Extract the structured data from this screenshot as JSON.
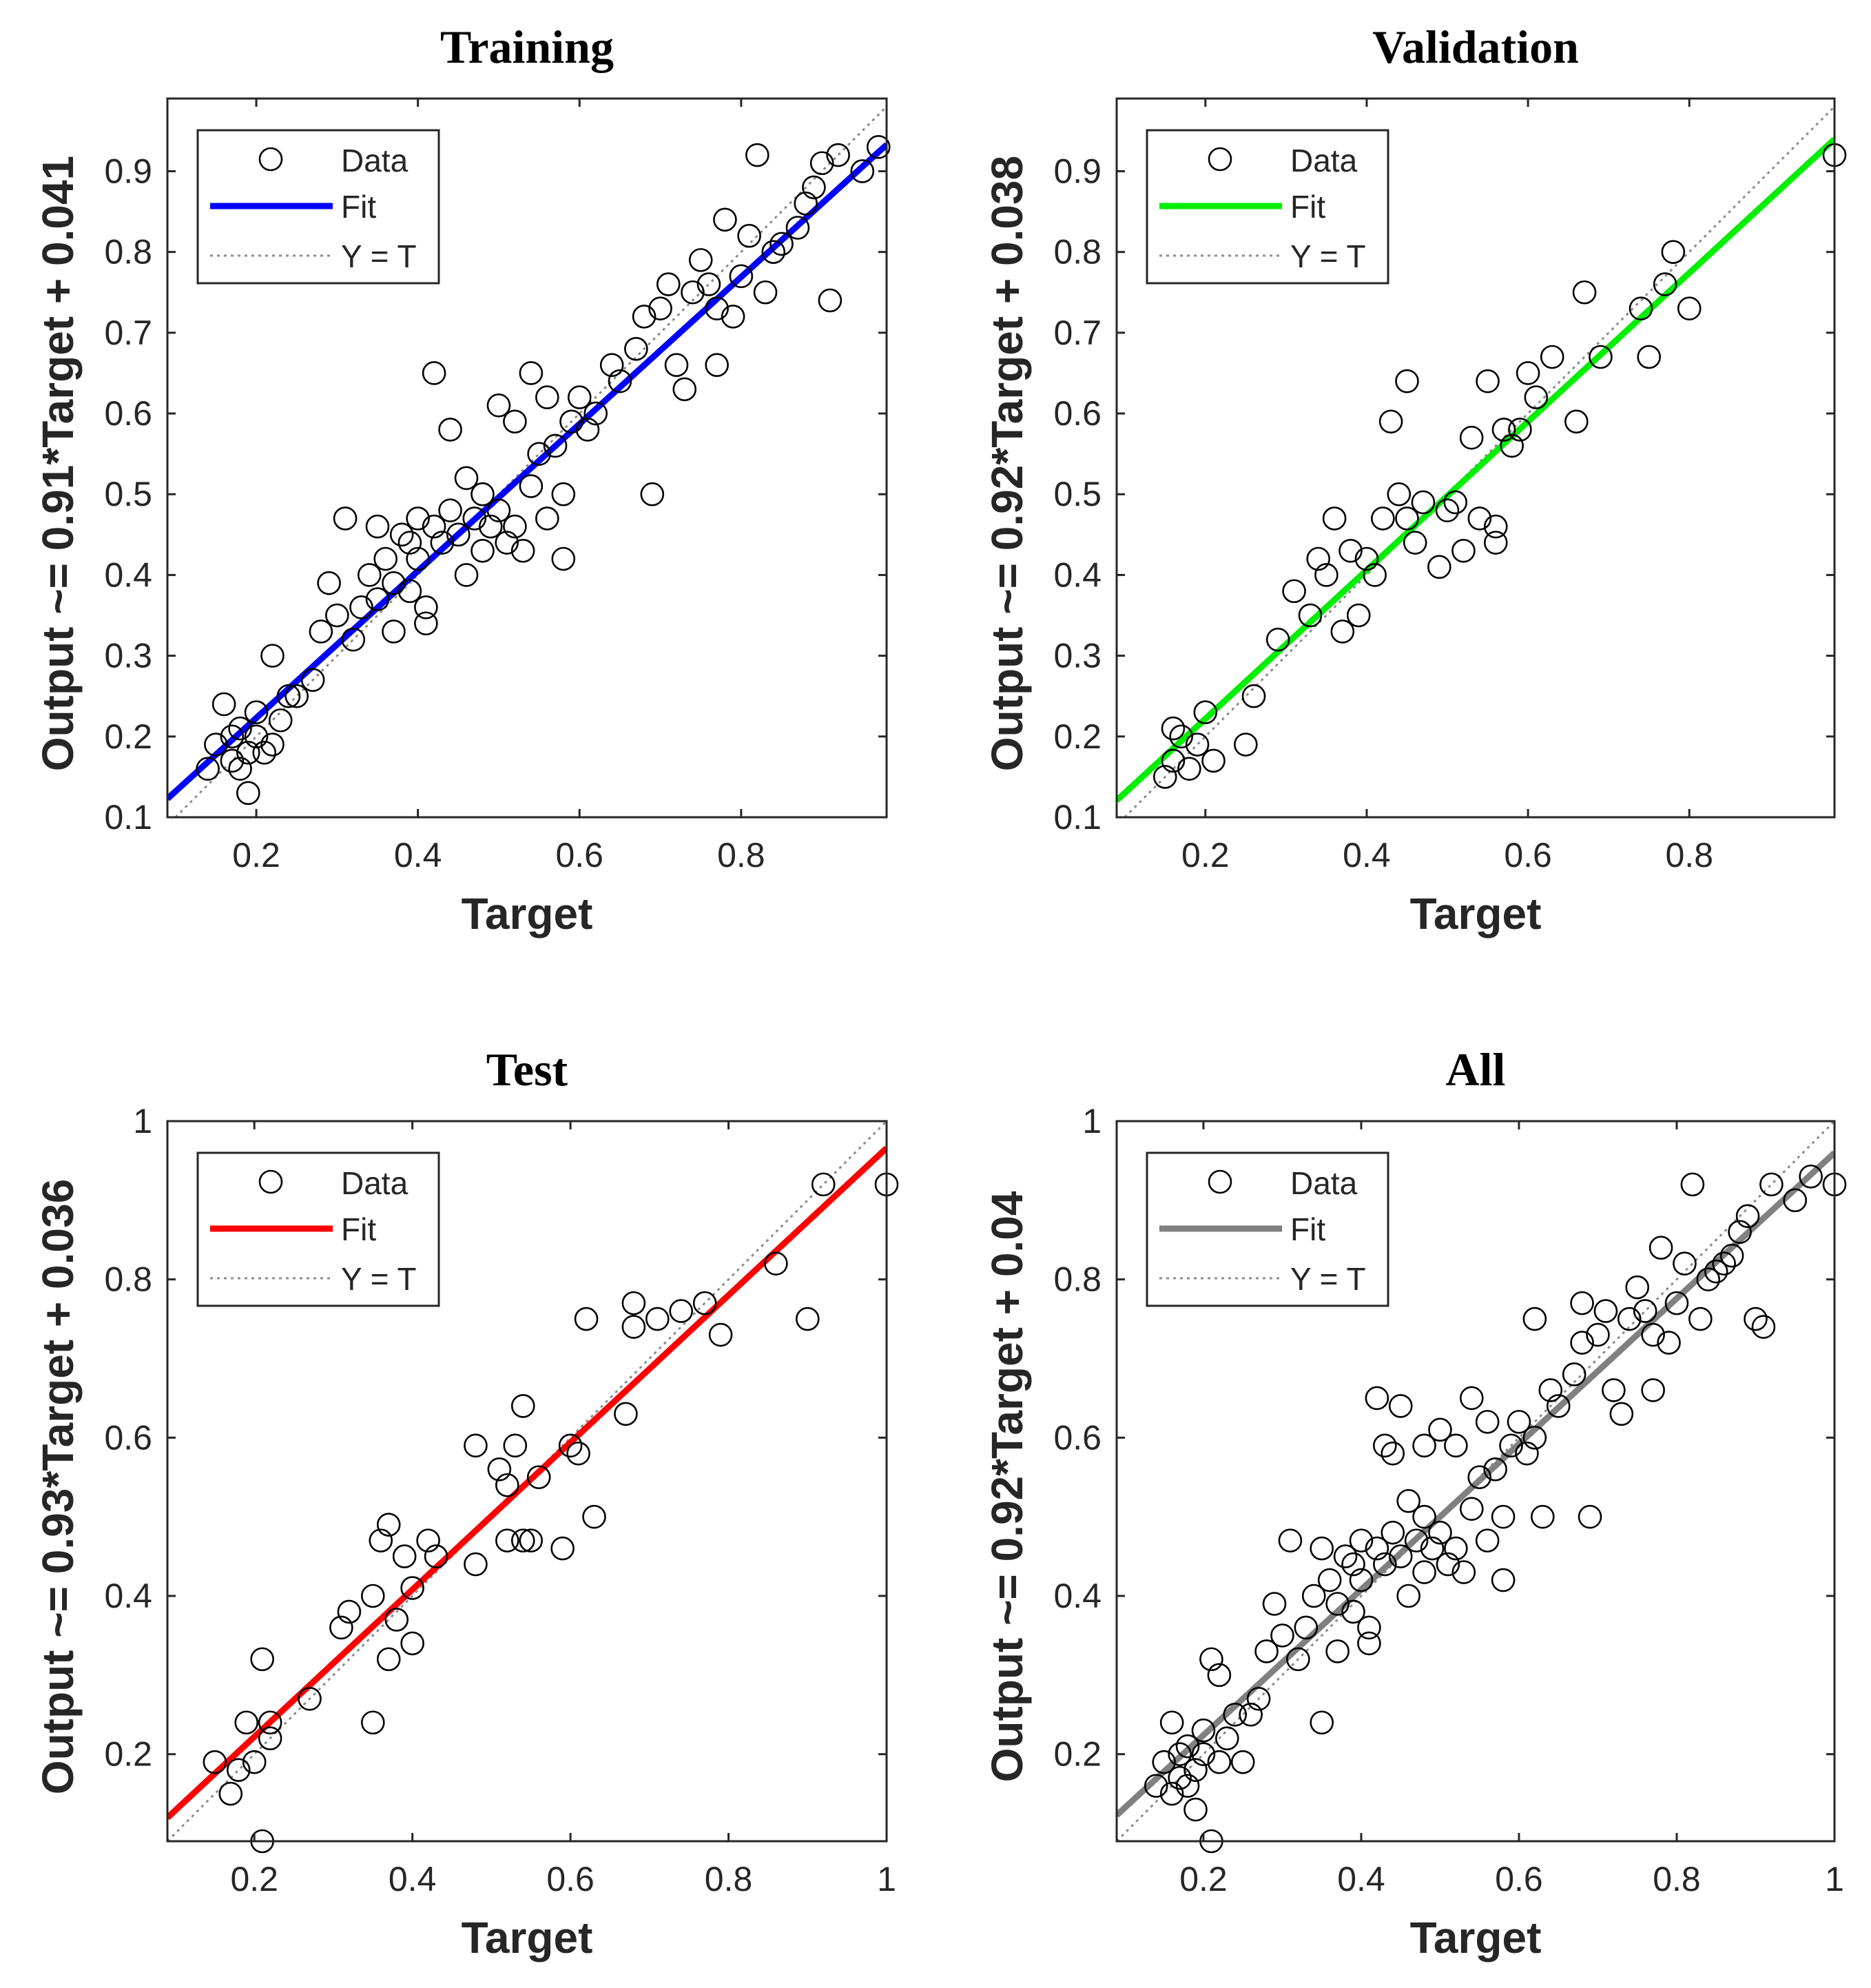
{
  "colors": {
    "axis": "#262626",
    "marker": "#000000",
    "identity": "#8c8c8c"
  },
  "chart_data": [
    {
      "type": "scatter",
      "title": "Training",
      "xlabel": "Target",
      "ylabel": "Output ~= 0.91*Target + 0.041",
      "xlim": [
        0.09,
        0.98
      ],
      "ylim": [
        0.1,
        0.99
      ],
      "xticks": [
        "0.2",
        "0.4",
        "0.6",
        "0.8"
      ],
      "xtick_values": [
        0.2,
        0.4,
        0.6,
        0.8
      ],
      "yticks": [
        "0.1",
        "0.2",
        "0.3",
        "0.4",
        "0.5",
        "0.6",
        "0.7",
        "0.8",
        "0.9"
      ],
      "ytick_values": [
        0.1,
        0.2,
        0.3,
        0.4,
        0.5,
        0.6,
        0.7,
        0.8,
        0.9
      ],
      "fit": {
        "slope": 0.91,
        "intercept": 0.041,
        "color": "#0000ff"
      },
      "legend": {
        "data": "Data",
        "fit": "Fit",
        "identity": "Y = T",
        "position": "top-left"
      },
      "points": [
        [
          0.14,
          0.16
        ],
        [
          0.15,
          0.19
        ],
        [
          0.16,
          0.24
        ],
        [
          0.17,
          0.17
        ],
        [
          0.17,
          0.2
        ],
        [
          0.18,
          0.16
        ],
        [
          0.18,
          0.21
        ],
        [
          0.19,
          0.13
        ],
        [
          0.19,
          0.18
        ],
        [
          0.2,
          0.2
        ],
        [
          0.2,
          0.23
        ],
        [
          0.21,
          0.18
        ],
        [
          0.22,
          0.19
        ],
        [
          0.22,
          0.3
        ],
        [
          0.23,
          0.22
        ],
        [
          0.24,
          0.25
        ],
        [
          0.25,
          0.25
        ],
        [
          0.27,
          0.27
        ],
        [
          0.28,
          0.33
        ],
        [
          0.29,
          0.39
        ],
        [
          0.3,
          0.35
        ],
        [
          0.31,
          0.47
        ],
        [
          0.32,
          0.32
        ],
        [
          0.33,
          0.36
        ],
        [
          0.34,
          0.4
        ],
        [
          0.35,
          0.46
        ],
        [
          0.35,
          0.37
        ],
        [
          0.36,
          0.42
        ],
        [
          0.37,
          0.39
        ],
        [
          0.37,
          0.33
        ],
        [
          0.38,
          0.45
        ],
        [
          0.39,
          0.44
        ],
        [
          0.39,
          0.38
        ],
        [
          0.4,
          0.47
        ],
        [
          0.4,
          0.42
        ],
        [
          0.41,
          0.36
        ],
        [
          0.41,
          0.34
        ],
        [
          0.42,
          0.65
        ],
        [
          0.42,
          0.46
        ],
        [
          0.43,
          0.44
        ],
        [
          0.44,
          0.48
        ],
        [
          0.44,
          0.58
        ],
        [
          0.45,
          0.45
        ],
        [
          0.46,
          0.4
        ],
        [
          0.46,
          0.52
        ],
        [
          0.47,
          0.47
        ],
        [
          0.48,
          0.43
        ],
        [
          0.48,
          0.5
        ],
        [
          0.49,
          0.46
        ],
        [
          0.5,
          0.61
        ],
        [
          0.5,
          0.48
        ],
        [
          0.51,
          0.44
        ],
        [
          0.52,
          0.59
        ],
        [
          0.52,
          0.46
        ],
        [
          0.53,
          0.43
        ],
        [
          0.54,
          0.51
        ],
        [
          0.54,
          0.65
        ],
        [
          0.55,
          0.55
        ],
        [
          0.56,
          0.47
        ],
        [
          0.56,
          0.62
        ],
        [
          0.57,
          0.56
        ],
        [
          0.58,
          0.42
        ],
        [
          0.58,
          0.5
        ],
        [
          0.59,
          0.59
        ],
        [
          0.6,
          0.62
        ],
        [
          0.61,
          0.58
        ],
        [
          0.62,
          0.6
        ],
        [
          0.64,
          0.66
        ],
        [
          0.65,
          0.64
        ],
        [
          0.67,
          0.68
        ],
        [
          0.68,
          0.72
        ],
        [
          0.69,
          0.5
        ],
        [
          0.7,
          0.73
        ],
        [
          0.71,
          0.76
        ],
        [
          0.72,
          0.66
        ],
        [
          0.73,
          0.63
        ],
        [
          0.74,
          0.75
        ],
        [
          0.75,
          0.79
        ],
        [
          0.76,
          0.76
        ],
        [
          0.77,
          0.73
        ],
        [
          0.77,
          0.66
        ],
        [
          0.78,
          0.84
        ],
        [
          0.79,
          0.72
        ],
        [
          0.8,
          0.77
        ],
        [
          0.81,
          0.82
        ],
        [
          0.82,
          0.92
        ],
        [
          0.83,
          0.75
        ],
        [
          0.84,
          0.8
        ],
        [
          0.85,
          0.81
        ],
        [
          0.87,
          0.83
        ],
        [
          0.88,
          0.86
        ],
        [
          0.89,
          0.88
        ],
        [
          0.9,
          0.91
        ],
        [
          0.91,
          0.74
        ],
        [
          0.92,
          0.92
        ],
        [
          0.95,
          0.9
        ],
        [
          0.97,
          0.93
        ]
      ]
    },
    {
      "type": "scatter",
      "title": "Validation",
      "xlabel": "Target",
      "ylabel": "Output ~= 0.92*Target + 0.038",
      "xlim": [
        0.09,
        0.98
      ],
      "ylim": [
        0.1,
        0.99
      ],
      "xticks": [
        "0.2",
        "0.4",
        "0.6",
        "0.8"
      ],
      "xtick_values": [
        0.2,
        0.4,
        0.6,
        0.8
      ],
      "yticks": [
        "0.1",
        "0.2",
        "0.3",
        "0.4",
        "0.5",
        "0.6",
        "0.7",
        "0.8",
        "0.9"
      ],
      "ytick_values": [
        0.1,
        0.2,
        0.3,
        0.4,
        0.5,
        0.6,
        0.7,
        0.8,
        0.9
      ],
      "fit": {
        "slope": 0.92,
        "intercept": 0.038,
        "color": "#00ee00"
      },
      "legend": {
        "data": "Data",
        "fit": "Fit",
        "identity": "Y = T",
        "position": "top-left"
      },
      "points": [
        [
          0.15,
          0.15
        ],
        [
          0.16,
          0.17
        ],
        [
          0.16,
          0.21
        ],
        [
          0.17,
          0.2
        ],
        [
          0.18,
          0.16
        ],
        [
          0.19,
          0.19
        ],
        [
          0.2,
          0.23
        ],
        [
          0.21,
          0.17
        ],
        [
          0.25,
          0.19
        ],
        [
          0.26,
          0.25
        ],
        [
          0.29,
          0.32
        ],
        [
          0.31,
          0.38
        ],
        [
          0.33,
          0.35
        ],
        [
          0.34,
          0.42
        ],
        [
          0.35,
          0.4
        ],
        [
          0.36,
          0.47
        ],
        [
          0.37,
          0.33
        ],
        [
          0.38,
          0.43
        ],
        [
          0.39,
          0.35
        ],
        [
          0.4,
          0.42
        ],
        [
          0.41,
          0.4
        ],
        [
          0.42,
          0.47
        ],
        [
          0.43,
          0.59
        ],
        [
          0.44,
          0.5
        ],
        [
          0.45,
          0.47
        ],
        [
          0.45,
          0.64
        ],
        [
          0.46,
          0.44
        ],
        [
          0.47,
          0.49
        ],
        [
          0.49,
          0.41
        ],
        [
          0.5,
          0.48
        ],
        [
          0.51,
          0.49
        ],
        [
          0.52,
          0.43
        ],
        [
          0.53,
          0.57
        ],
        [
          0.54,
          0.47
        ],
        [
          0.55,
          0.64
        ],
        [
          0.56,
          0.46
        ],
        [
          0.56,
          0.44
        ],
        [
          0.57,
          0.58
        ],
        [
          0.58,
          0.56
        ],
        [
          0.59,
          0.58
        ],
        [
          0.6,
          0.65
        ],
        [
          0.61,
          0.62
        ],
        [
          0.63,
          0.67
        ],
        [
          0.66,
          0.59
        ],
        [
          0.67,
          0.75
        ],
        [
          0.69,
          0.67
        ],
        [
          0.74,
          0.73
        ],
        [
          0.75,
          0.67
        ],
        [
          0.77,
          0.76
        ],
        [
          0.78,
          0.8
        ],
        [
          0.8,
          0.73
        ],
        [
          0.98,
          0.92
        ]
      ]
    },
    {
      "type": "scatter",
      "title": "Test",
      "xlabel": "Target",
      "ylabel": "Output ~= 0.93*Target + 0.036",
      "xlim": [
        0.09,
        1.0
      ],
      "ylim": [
        0.09,
        1.0
      ],
      "xticks": [
        "0.2",
        "0.4",
        "0.6",
        "0.8",
        "1"
      ],
      "xtick_values": [
        0.2,
        0.4,
        0.6,
        0.8,
        1.0
      ],
      "yticks": [
        "0.2",
        "0.4",
        "0.6",
        "0.8",
        "1"
      ],
      "ytick_values": [
        0.2,
        0.4,
        0.6,
        0.8,
        1.0
      ],
      "fit": {
        "slope": 0.93,
        "intercept": 0.036,
        "color": "#ff0000"
      },
      "legend": {
        "data": "Data",
        "fit": "Fit",
        "identity": "Y = T",
        "position": "top-left"
      },
      "points": [
        [
          0.15,
          0.19
        ],
        [
          0.17,
          0.15
        ],
        [
          0.18,
          0.18
        ],
        [
          0.19,
          0.24
        ],
        [
          0.2,
          0.19
        ],
        [
          0.21,
          0.32
        ],
        [
          0.21,
          0.09
        ],
        [
          0.22,
          0.22
        ],
        [
          0.22,
          0.24
        ],
        [
          0.27,
          0.27
        ],
        [
          0.31,
          0.36
        ],
        [
          0.32,
          0.38
        ],
        [
          0.35,
          0.4
        ],
        [
          0.35,
          0.24
        ],
        [
          0.36,
          0.47
        ],
        [
          0.37,
          0.32
        ],
        [
          0.37,
          0.49
        ],
        [
          0.38,
          0.37
        ],
        [
          0.39,
          0.45
        ],
        [
          0.4,
          0.41
        ],
        [
          0.4,
          0.34
        ],
        [
          0.42,
          0.47
        ],
        [
          0.43,
          0.45
        ],
        [
          0.48,
          0.44
        ],
        [
          0.48,
          0.59
        ],
        [
          0.51,
          0.56
        ],
        [
          0.52,
          0.54
        ],
        [
          0.52,
          0.47
        ],
        [
          0.53,
          0.59
        ],
        [
          0.54,
          0.64
        ],
        [
          0.54,
          0.47
        ],
        [
          0.55,
          0.47
        ],
        [
          0.56,
          0.55
        ],
        [
          0.59,
          0.46
        ],
        [
          0.6,
          0.59
        ],
        [
          0.61,
          0.58
        ],
        [
          0.62,
          0.75
        ],
        [
          0.63,
          0.5
        ],
        [
          0.67,
          0.63
        ],
        [
          0.68,
          0.74
        ],
        [
          0.68,
          0.77
        ],
        [
          0.71,
          0.75
        ],
        [
          0.74,
          0.76
        ],
        [
          0.77,
          0.77
        ],
        [
          0.79,
          0.73
        ],
        [
          0.86,
          0.82
        ],
        [
          0.9,
          0.75
        ],
        [
          0.92,
          0.92
        ],
        [
          1.0,
          0.92
        ]
      ]
    },
    {
      "type": "scatter",
      "title": "All",
      "xlabel": "Target",
      "ylabel": "Output ~= 0.92*Target + 0.04",
      "xlim": [
        0.09,
        1.0
      ],
      "ylim": [
        0.09,
        1.0
      ],
      "xticks": [
        "0.2",
        "0.4",
        "0.6",
        "0.8",
        "1"
      ],
      "xtick_values": [
        0.2,
        0.4,
        0.6,
        0.8,
        1.0
      ],
      "yticks": [
        "0.2",
        "0.4",
        "0.6",
        "0.8",
        "1"
      ],
      "ytick_values": [
        0.2,
        0.4,
        0.6,
        0.8,
        1.0
      ],
      "fit": {
        "slope": 0.92,
        "intercept": 0.04,
        "color": "#808080"
      },
      "legend": {
        "data": "Data",
        "fit": "Fit",
        "identity": "Y = T",
        "position": "top-left"
      },
      "points": [
        [
          0.14,
          0.16
        ],
        [
          0.15,
          0.19
        ],
        [
          0.16,
          0.24
        ],
        [
          0.16,
          0.15
        ],
        [
          0.17,
          0.17
        ],
        [
          0.17,
          0.2
        ],
        [
          0.18,
          0.16
        ],
        [
          0.18,
          0.21
        ],
        [
          0.19,
          0.13
        ],
        [
          0.19,
          0.18
        ],
        [
          0.2,
          0.2
        ],
        [
          0.2,
          0.23
        ],
        [
          0.21,
          0.32
        ],
        [
          0.21,
          0.09
        ],
        [
          0.22,
          0.19
        ],
        [
          0.22,
          0.3
        ],
        [
          0.23,
          0.22
        ],
        [
          0.24,
          0.25
        ],
        [
          0.25,
          0.19
        ],
        [
          0.26,
          0.25
        ],
        [
          0.27,
          0.27
        ],
        [
          0.28,
          0.33
        ],
        [
          0.29,
          0.39
        ],
        [
          0.3,
          0.35
        ],
        [
          0.31,
          0.47
        ],
        [
          0.32,
          0.32
        ],
        [
          0.33,
          0.36
        ],
        [
          0.34,
          0.4
        ],
        [
          0.35,
          0.46
        ],
        [
          0.35,
          0.24
        ],
        [
          0.36,
          0.42
        ],
        [
          0.37,
          0.39
        ],
        [
          0.37,
          0.33
        ],
        [
          0.38,
          0.45
        ],
        [
          0.39,
          0.44
        ],
        [
          0.39,
          0.38
        ],
        [
          0.4,
          0.47
        ],
        [
          0.4,
          0.42
        ],
        [
          0.41,
          0.36
        ],
        [
          0.41,
          0.34
        ],
        [
          0.42,
          0.65
        ],
        [
          0.42,
          0.46
        ],
        [
          0.43,
          0.44
        ],
        [
          0.43,
          0.59
        ],
        [
          0.44,
          0.48
        ],
        [
          0.44,
          0.58
        ],
        [
          0.45,
          0.45
        ],
        [
          0.45,
          0.64
        ],
        [
          0.46,
          0.4
        ],
        [
          0.46,
          0.52
        ],
        [
          0.47,
          0.47
        ],
        [
          0.48,
          0.43
        ],
        [
          0.48,
          0.5
        ],
        [
          0.48,
          0.59
        ],
        [
          0.49,
          0.46
        ],
        [
          0.5,
          0.61
        ],
        [
          0.5,
          0.48
        ],
        [
          0.51,
          0.44
        ],
        [
          0.52,
          0.59
        ],
        [
          0.52,
          0.46
        ],
        [
          0.53,
          0.43
        ],
        [
          0.54,
          0.51
        ],
        [
          0.54,
          0.65
        ],
        [
          0.55,
          0.55
        ],
        [
          0.56,
          0.47
        ],
        [
          0.56,
          0.62
        ],
        [
          0.57,
          0.56
        ],
        [
          0.58,
          0.42
        ],
        [
          0.58,
          0.5
        ],
        [
          0.59,
          0.59
        ],
        [
          0.6,
          0.62
        ],
        [
          0.61,
          0.58
        ],
        [
          0.62,
          0.6
        ],
        [
          0.62,
          0.75
        ],
        [
          0.63,
          0.5
        ],
        [
          0.64,
          0.66
        ],
        [
          0.65,
          0.64
        ],
        [
          0.67,
          0.68
        ],
        [
          0.68,
          0.72
        ],
        [
          0.68,
          0.77
        ],
        [
          0.69,
          0.5
        ],
        [
          0.7,
          0.73
        ],
        [
          0.71,
          0.76
        ],
        [
          0.72,
          0.66
        ],
        [
          0.73,
          0.63
        ],
        [
          0.74,
          0.75
        ],
        [
          0.75,
          0.79
        ],
        [
          0.76,
          0.76
        ],
        [
          0.77,
          0.73
        ],
        [
          0.77,
          0.66
        ],
        [
          0.78,
          0.84
        ],
        [
          0.79,
          0.72
        ],
        [
          0.8,
          0.77
        ],
        [
          0.81,
          0.82
        ],
        [
          0.82,
          0.92
        ],
        [
          0.83,
          0.75
        ],
        [
          0.84,
          0.8
        ],
        [
          0.85,
          0.81
        ],
        [
          0.86,
          0.82
        ],
        [
          0.87,
          0.83
        ],
        [
          0.88,
          0.86
        ],
        [
          0.89,
          0.88
        ],
        [
          0.9,
          0.75
        ],
        [
          0.91,
          0.74
        ],
        [
          0.92,
          0.92
        ],
        [
          0.95,
          0.9
        ],
        [
          0.97,
          0.93
        ],
        [
          1.0,
          0.92
        ]
      ]
    }
  ]
}
